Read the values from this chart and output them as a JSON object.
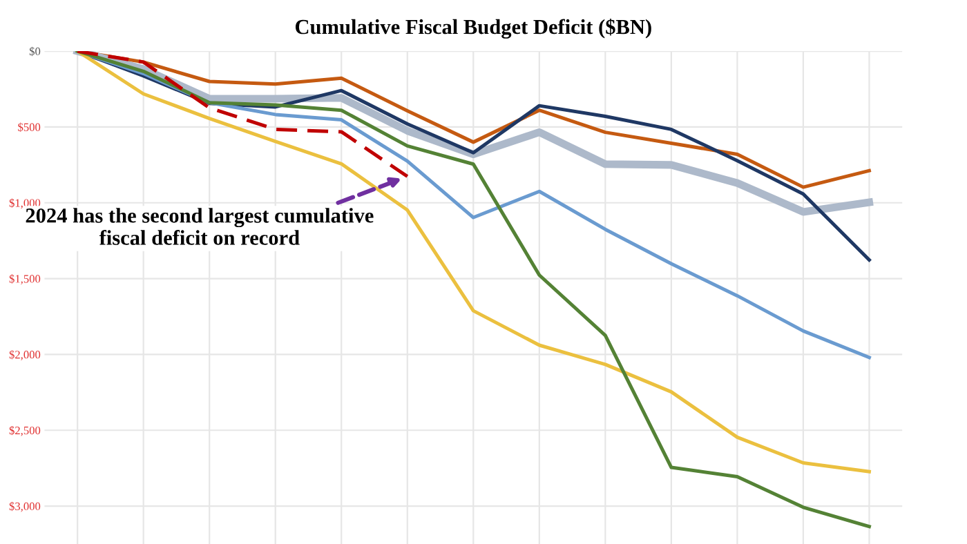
{
  "chart_data": {
    "type": "line",
    "title": "Cumulative Fiscal Budget Deficit ($BN)",
    "categories": [
      null,
      null,
      null,
      null,
      null,
      null,
      null,
      null,
      null,
      null,
      null,
      null,
      null
    ],
    "series": [
      {
        "color": "#c55a11",
        "values": [
          0,
          -72,
          -200,
          -217,
          -178,
          -393,
          -600,
          -390,
          -535,
          -607,
          -680,
          -897,
          -788
        ]
      },
      {
        "color": "#adb9ca",
        "values": [
          0,
          -118,
          -314,
          -314,
          -308,
          -525,
          -680,
          -535,
          -745,
          -750,
          -870,
          -1060,
          -997
        ]
      },
      {
        "color": "#1f3864",
        "values": [
          0,
          -163,
          -344,
          -368,
          -260,
          -480,
          -670,
          -360,
          -430,
          -516,
          -722,
          -942,
          -1377
        ]
      },
      {
        "color": "#6a9bd0",
        "values": [
          0,
          -148,
          -340,
          -418,
          -453,
          -725,
          -1097,
          -925,
          -1175,
          -1402,
          -1613,
          -1845,
          -2020
        ]
      },
      {
        "color": "#ebc03f",
        "values": [
          0,
          -282,
          -444,
          -595,
          -743,
          -1048,
          -1712,
          -1939,
          -2066,
          -2247,
          -2546,
          -2715,
          -2773
        ]
      },
      {
        "color": "#548235",
        "values": [
          0,
          -133,
          -340,
          -355,
          -390,
          -625,
          -745,
          -1477,
          -1875,
          -2745,
          -2806,
          -3008,
          -3135
        ]
      },
      {
        "color": "#c00000",
        "line_style": "dashed",
        "values": [
          0,
          -72,
          -374,
          -516,
          -532,
          -826,
          null,
          null,
          null,
          null,
          null,
          null,
          null
        ]
      }
    ],
    "ylim": [
      -3250,
      0
    ],
    "yticks": [
      {
        "value": 0,
        "label": "$0"
      },
      {
        "value": -500,
        "label": "$500"
      },
      {
        "value": -1000,
        "label": "$1,000"
      },
      {
        "value": -1500,
        "label": "$1,500"
      },
      {
        "value": -2000,
        "label": "$2,000"
      },
      {
        "value": -2500,
        "label": "$2,500"
      },
      {
        "value": -3000,
        "label": "$3,000"
      }
    ],
    "grid": true,
    "legend": false,
    "annotations": [
      "2024 has the second largest cumulative fiscal deficit on record"
    ]
  }
}
